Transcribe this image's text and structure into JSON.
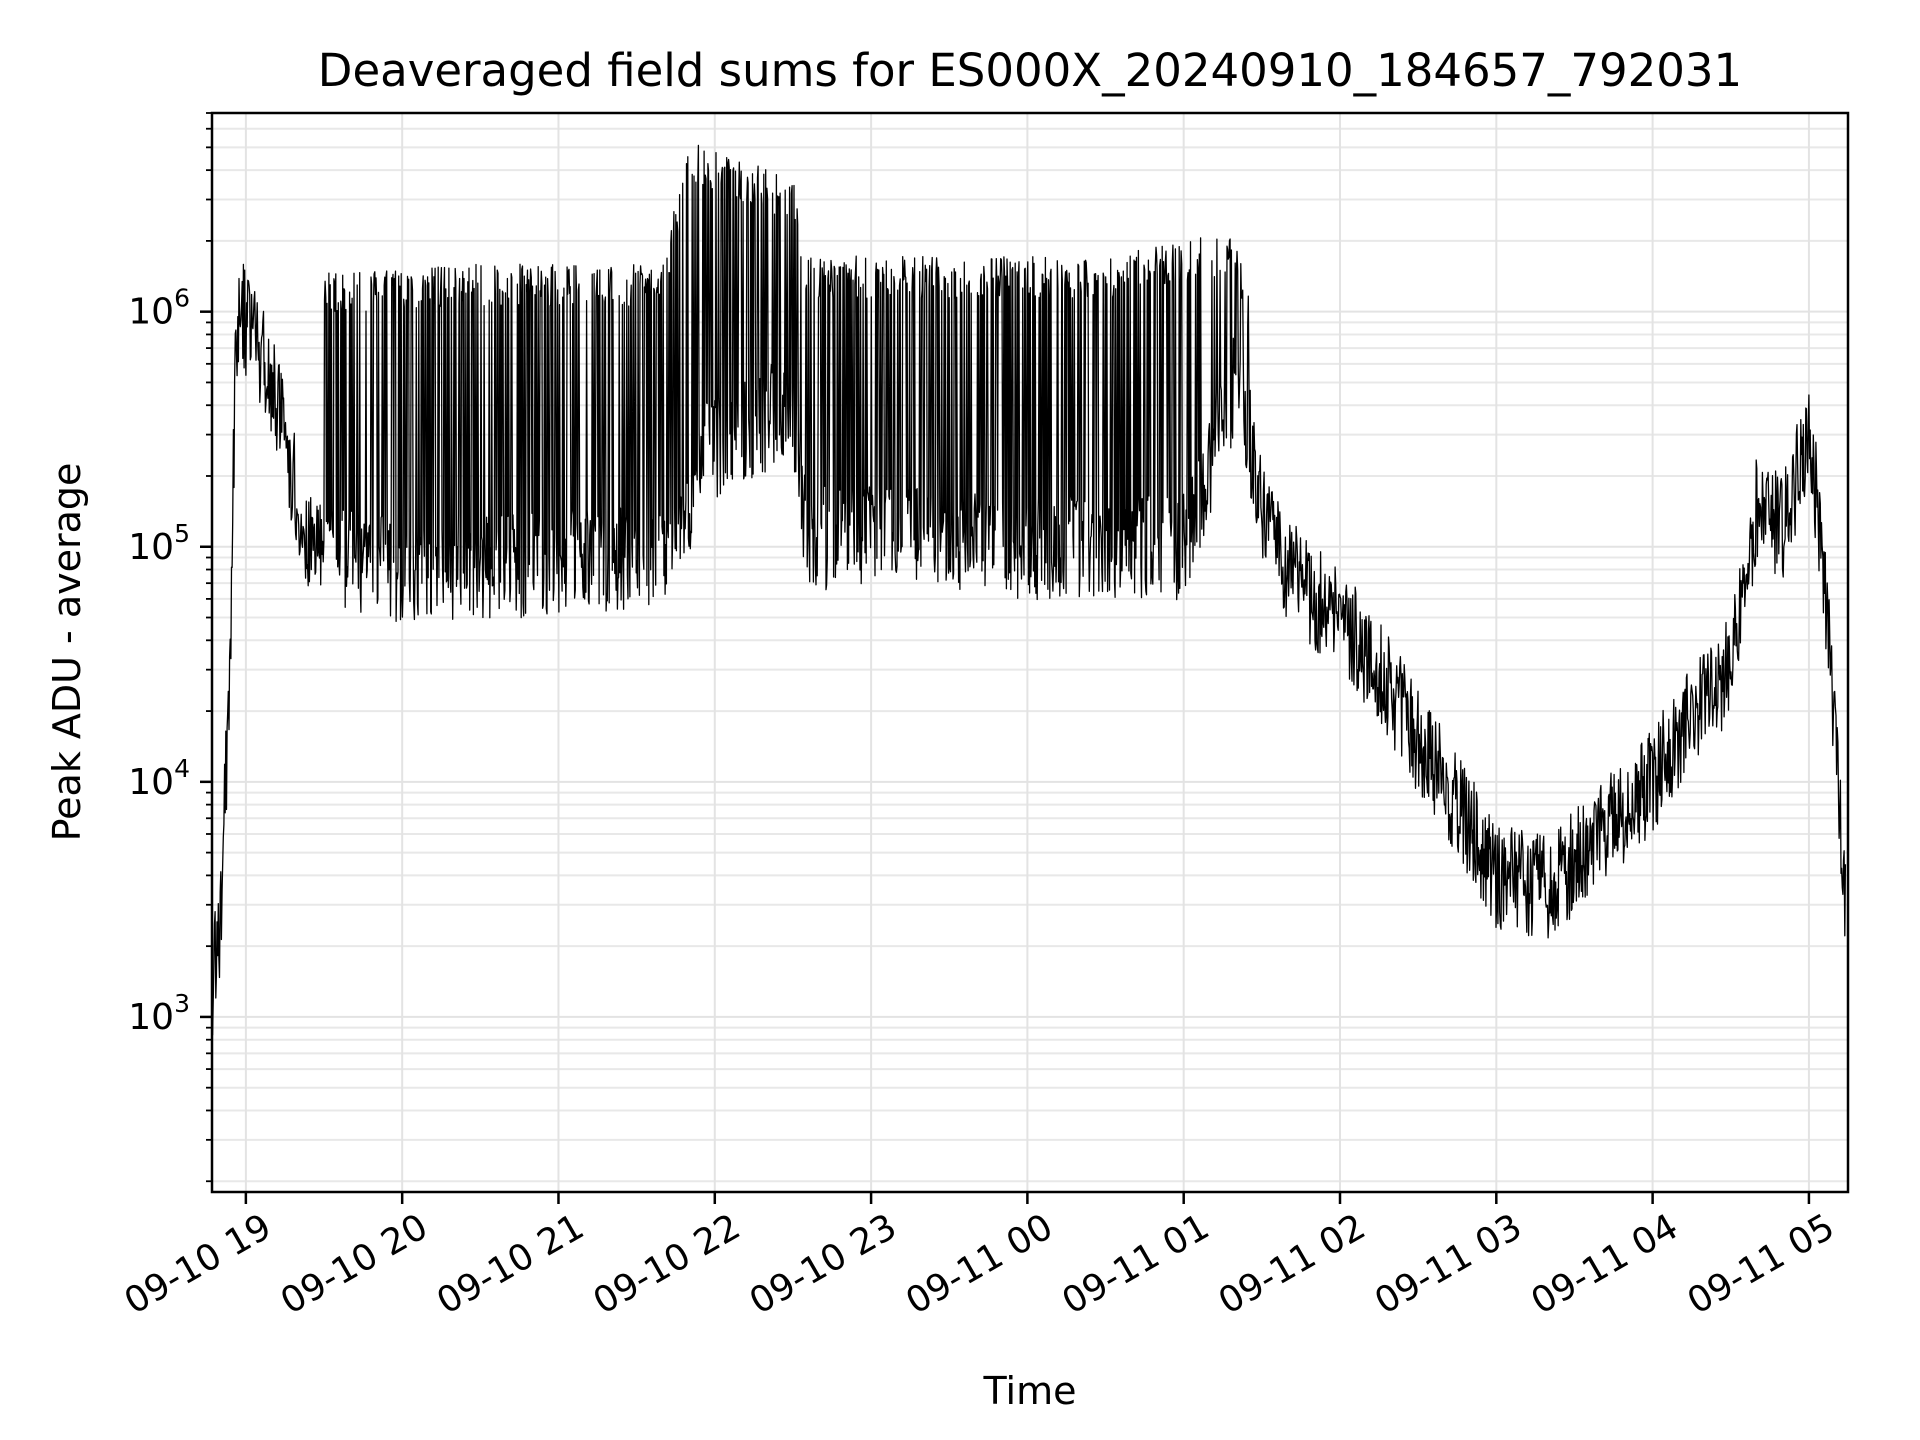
{
  "chart_data": {
    "type": "line",
    "title": "Deaveraged field sums for ES000X_20240910_184657_792031",
    "xlabel": "Time",
    "ylabel": "Peak ADU - average",
    "yscale": "log",
    "ylim": [
      180,
      7000000
    ],
    "xlim": [
      "2024-09-10 18:47",
      "2024-09-11 05:15"
    ],
    "grid": true,
    "x_ticks": [
      {
        "value": "2024-09-10 19:00",
        "label": "09-10 19"
      },
      {
        "value": "2024-09-10 20:00",
        "label": "09-10 20"
      },
      {
        "value": "2024-09-10 21:00",
        "label": "09-10 21"
      },
      {
        "value": "2024-09-10 22:00",
        "label": "09-10 22"
      },
      {
        "value": "2024-09-10 23:00",
        "label": "09-10 23"
      },
      {
        "value": "2024-09-11 00:00",
        "label": "09-11 00"
      },
      {
        "value": "2024-09-11 01:00",
        "label": "09-11 01"
      },
      {
        "value": "2024-09-11 02:00",
        "label": "09-11 02"
      },
      {
        "value": "2024-09-11 03:00",
        "label": "09-11 03"
      },
      {
        "value": "2024-09-11 04:00",
        "label": "09-11 04"
      },
      {
        "value": "2024-09-11 05:00",
        "label": "09-11 05"
      }
    ],
    "y_ticks": [
      {
        "value": 1000,
        "base": "10",
        "exp": "3"
      },
      {
        "value": 10000,
        "base": "10",
        "exp": "4"
      },
      {
        "value": 100000,
        "base": "10",
        "exp": "5"
      },
      {
        "value": 1000000,
        "base": "10",
        "exp": "6"
      }
    ],
    "series": [
      {
        "color": "#000000",
        "baseline_envelope": {
          "x": [
            "2024-09-10 18:47",
            "2024-09-10 18:50",
            "2024-09-10 18:52",
            "2024-09-10 18:54",
            "2024-09-10 18:56",
            "2024-09-10 18:58",
            "2024-09-10 19:00",
            "2024-09-10 19:05",
            "2024-09-10 19:10",
            "2024-09-10 19:15",
            "2024-09-10 19:20",
            "2024-09-10 19:25",
            "2024-09-10 19:30",
            "2024-09-10 20:00",
            "2024-09-10 21:00",
            "2024-09-10 21:45",
            "2024-09-10 21:55",
            "2024-09-10 22:10",
            "2024-09-10 22:30",
            "2024-09-10 22:35",
            "2024-09-10 23:00",
            "2024-09-11 00:00",
            "2024-09-11 01:00",
            "2024-09-11 01:20",
            "2024-09-11 01:25",
            "2024-09-11 01:30",
            "2024-09-11 01:40",
            "2024-09-11 01:50",
            "2024-09-11 02:00",
            "2024-09-11 02:15",
            "2024-09-11 02:30",
            "2024-09-11 02:45",
            "2024-09-11 03:00",
            "2024-09-11 03:20",
            "2024-09-11 03:40",
            "2024-09-11 04:00",
            "2024-09-11 04:15",
            "2024-09-11 04:30",
            "2024-09-11 04:40",
            "2024-09-11 04:50",
            "2024-09-11 05:00",
            "2024-09-11 05:05",
            "2024-09-11 05:10",
            "2024-09-11 05:14"
          ],
          "y": [
            1300,
            2500,
            8000,
            30000,
            700000,
            1100000,
            900000,
            700000,
            500000,
            300000,
            150000,
            100000,
            90000,
            80000,
            85000,
            90000,
            250000,
            300000,
            400000,
            110000,
            110000,
            100000,
            100000,
            500000,
            300000,
            150000,
            80000,
            60000,
            50000,
            30000,
            15000,
            8000,
            4000,
            3500,
            6000,
            10000,
            20000,
            30000,
            150000,
            120000,
            300000,
            100000,
            15000,
            3000
          ]
        },
        "high_envelope": {
          "x": [
            "2024-09-10 19:30",
            "2024-09-10 20:30",
            "2024-09-10 21:40",
            "2024-09-10 21:50",
            "2024-09-10 22:30",
            "2024-09-10 22:35",
            "2024-09-11 00:30",
            "2024-09-11 01:20",
            "2024-09-11 01:25"
          ],
          "y": [
            1200000,
            1300000,
            1300000,
            4300000,
            3000000,
            1400000,
            1400000,
            1800000,
            1000000
          ]
        }
      }
    ]
  }
}
